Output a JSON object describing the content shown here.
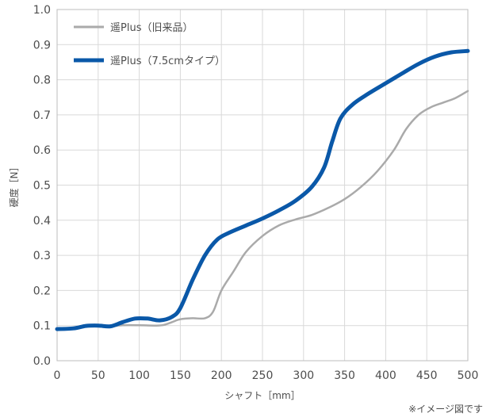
{
  "chart_data": {
    "type": "line",
    "xlabel": "シャフト［mm］",
    "ylabel": "硬度［N］",
    "xlim": [
      0,
      500
    ],
    "ylim": [
      0,
      1.0
    ],
    "xticks": [
      "0",
      "50",
      "100",
      "150",
      "200",
      "250",
      "300",
      "350",
      "400",
      "450",
      "500"
    ],
    "yticks": [
      "0.0",
      "0.1",
      "0.2",
      "0.3",
      "0.4",
      "0.5",
      "0.6",
      "0.7",
      "0.8",
      "0.9",
      "1.0"
    ],
    "grid": true,
    "legend_position": "top-left",
    "series": [
      {
        "name": "遥Plus（旧来品）",
        "color": "#aaaaaa",
        "x": [
          0,
          20,
          35,
          50,
          65,
          80,
          100,
          120,
          130,
          140,
          150,
          165,
          180,
          190,
          200,
          215,
          230,
          250,
          270,
          290,
          310,
          330,
          350,
          370,
          390,
          410,
          425,
          440,
          455,
          470,
          485,
          500
        ],
        "y": [
          0.09,
          0.092,
          0.098,
          0.1,
          0.098,
          0.101,
          0.101,
          0.1,
          0.102,
          0.11,
          0.118,
          0.121,
          0.121,
          0.14,
          0.2,
          0.255,
          0.31,
          0.355,
          0.385,
          0.402,
          0.415,
          0.435,
          0.46,
          0.495,
          0.54,
          0.6,
          0.66,
          0.7,
          0.722,
          0.735,
          0.748,
          0.768
        ]
      },
      {
        "name": "遥Plus（7.5cmタイプ）",
        "color": "#0a58a8",
        "x": [
          0,
          20,
          35,
          50,
          65,
          80,
          95,
          110,
          125,
          140,
          150,
          165,
          180,
          195,
          210,
          230,
          250,
          270,
          290,
          310,
          325,
          335,
          345,
          360,
          380,
          400,
          420,
          440,
          460,
          480,
          500
        ],
        "y": [
          0.09,
          0.092,
          0.099,
          0.1,
          0.098,
          0.11,
          0.12,
          0.12,
          0.115,
          0.125,
          0.15,
          0.23,
          0.3,
          0.345,
          0.365,
          0.385,
          0.405,
          0.428,
          0.455,
          0.495,
          0.55,
          0.625,
          0.69,
          0.73,
          0.762,
          0.79,
          0.818,
          0.845,
          0.866,
          0.878,
          0.882
        ]
      }
    ]
  },
  "note": "※イメージ図です"
}
